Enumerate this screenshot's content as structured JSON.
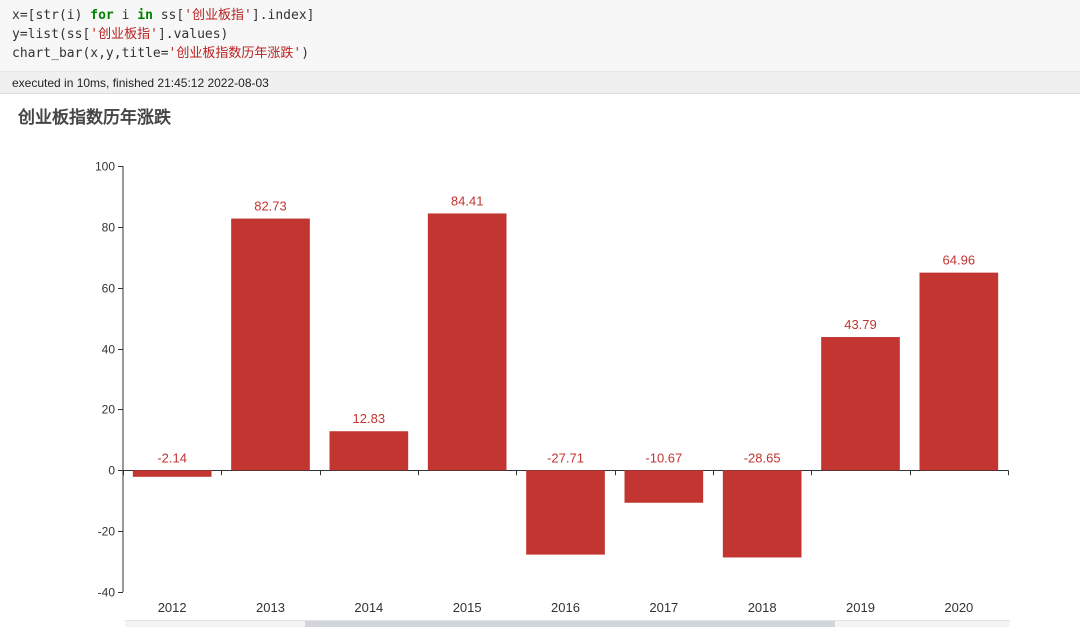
{
  "code": {
    "line1": {
      "a": "x=[str(i) ",
      "kw1": "for",
      "b": " i ",
      "kw2": "in",
      "c": " ss[",
      "s": "'创业板指'",
      "d": "].index]"
    },
    "line2": {
      "a": "y=list(ss[",
      "s": "'创业板指'",
      "b": "].values)"
    },
    "line3": {
      "a": "chart_bar(x,y,title=",
      "s": "'创业板指数历年涨跌'",
      "b": ")"
    }
  },
  "execution": {
    "status": "executed in 10ms, finished 21:45:12 2022-08-03"
  },
  "colors": {
    "bar": "#c23531",
    "label": "#c23531",
    "axis": "#333333"
  },
  "chart_data": {
    "type": "bar",
    "title": "创业板指数历年涨跌",
    "categories": [
      "2012",
      "2013",
      "2014",
      "2015",
      "2016",
      "2017",
      "2018",
      "2019",
      "2020"
    ],
    "values": [
      -2.14,
      82.73,
      12.83,
      84.41,
      -27.71,
      -10.67,
      -28.65,
      43.79,
      64.96
    ],
    "ylim": [
      -40,
      100
    ],
    "yticks": [
      -40,
      -20,
      0,
      20,
      40,
      60,
      80,
      100
    ],
    "xlabel": "",
    "ylabel": "",
    "grid": false,
    "legend": "none"
  }
}
